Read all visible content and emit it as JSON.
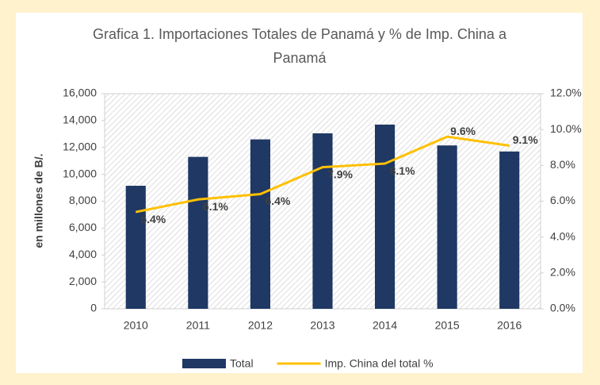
{
  "chart_data": {
    "type": "bar",
    "title": "Grafica 1. Importaciones Totales de Panamá y % de Imp. China a Panamá",
    "y_label": "en millones de B/.",
    "categories": [
      "2010",
      "2011",
      "2012",
      "2013",
      "2014",
      "2015",
      "2016"
    ],
    "series": [
      {
        "name": "Total",
        "type": "bar",
        "color": "#1f3864",
        "values": [
          9150,
          11300,
          12600,
          13050,
          13700,
          12150,
          11700
        ]
      },
      {
        "name": "Imp. China del total %",
        "type": "line",
        "axis": "y2",
        "color": "#ffc000",
        "values": [
          5.4,
          6.1,
          6.4,
          7.9,
          8.1,
          9.6,
          9.1
        ],
        "value_labels": [
          "5.4%",
          "6.1%",
          "6.4%",
          "7.9%",
          "8.1%",
          "9.6%",
          "9.1%"
        ]
      }
    ],
    "ylim": [
      0,
      16000
    ],
    "yticks": [
      0,
      {
        "value": 2000,
        "label": "2,000"
      },
      {
        "value": 4000,
        "label": "4,000"
      },
      {
        "value": 6000,
        "label": "6,000"
      },
      {
        "value": 8000,
        "label": "8,000"
      },
      {
        "value": 10000,
        "label": "10,000"
      },
      {
        "value": 12000,
        "label": "12,000"
      },
      {
        "value": 14000,
        "label": "14,000"
      },
      {
        "value": 16000,
        "label": "16,000"
      }
    ],
    "y2lim": [
      0,
      12
    ],
    "y2ticks": [
      {
        "value": 0,
        "label": "0.0%"
      },
      {
        "value": 2,
        "label": "2.0%"
      },
      {
        "value": 4,
        "label": "4.0%"
      },
      {
        "value": 6,
        "label": "6.0%"
      },
      {
        "value": 8,
        "label": "8.0%"
      },
      {
        "value": 10,
        "label": "10.0%"
      },
      {
        "value": 12,
        "label": "12.0%"
      }
    ],
    "legend": "bottom"
  }
}
